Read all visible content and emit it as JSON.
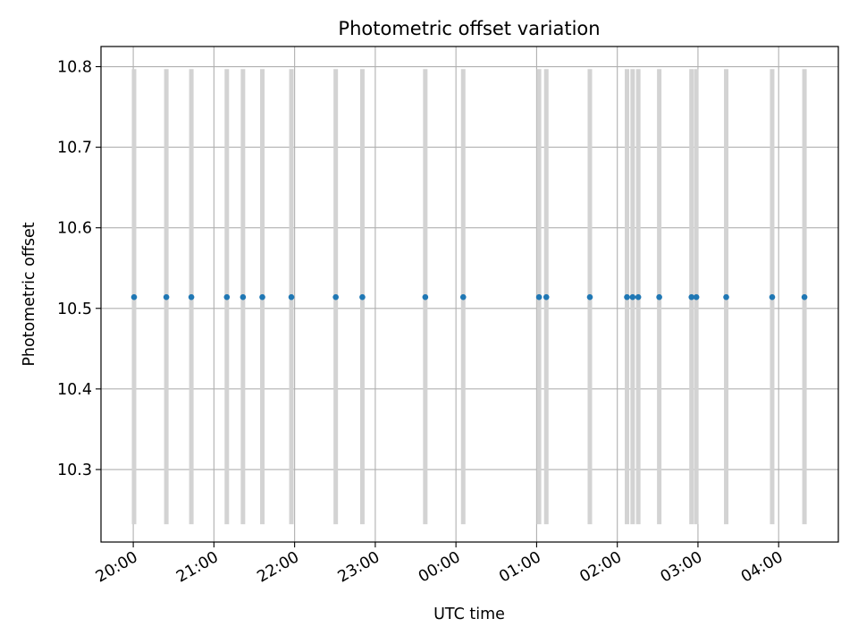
{
  "chart_data": {
    "type": "scatter",
    "title": "Photometric offset variation",
    "xlabel": "UTC time",
    "ylabel": "Photometric offset",
    "x_ticks": [
      "20:00",
      "21:00",
      "22:00",
      "23:00",
      "00:00",
      "01:00",
      "02:00",
      "03:00",
      "04:00"
    ],
    "y_ticks": [
      "10.3",
      "10.4",
      "10.5",
      "10.6",
      "10.7",
      "10.8"
    ],
    "xlim_hours": [
      19.6,
      28.74
    ],
    "ylim": [
      10.21,
      10.825
    ],
    "grid": true,
    "marker_color": "#1f77b4",
    "errorbar_color": "#d3d3d3",
    "series": [
      {
        "x_hours": [
          20.01,
          20.41,
          20.72,
          21.16,
          21.36,
          21.6,
          21.96,
          22.51,
          22.84,
          23.62,
          24.09,
          25.03,
          25.12,
          25.66,
          26.12,
          26.19,
          26.26,
          26.52,
          26.92,
          26.98,
          27.35,
          27.92,
          28.32
        ],
        "y": [
          10.514,
          10.514,
          10.514,
          10.514,
          10.514,
          10.514,
          10.514,
          10.514,
          10.514,
          10.514,
          10.514,
          10.514,
          10.514,
          10.514,
          10.514,
          10.514,
          10.514,
          10.514,
          10.514,
          10.514,
          10.514,
          10.514,
          10.514
        ],
        "y_low": 10.232,
        "y_high": 10.797
      }
    ]
  }
}
